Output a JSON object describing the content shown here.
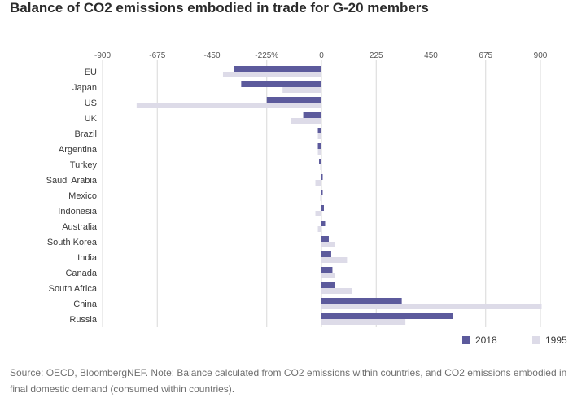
{
  "title": "Balance of CO2 emissions embodied in trade for G-20 members",
  "source_note": "Source: OECD, BloombergNEF. Note: Balance calculated from CO2 emissions within countries, and CO2 emissions embodied in final domestic demand (consumed within countries).",
  "colors": {
    "series_2018": "#5c5a9c",
    "series_1995": "#dddbe8",
    "grid": "#d8d8d8",
    "text": "#3a3a3a"
  },
  "chart_data": {
    "type": "bar",
    "orientation": "horizontal",
    "title": "Balance of CO2 emissions embodied in trade for G-20 members",
    "xlim": [
      -900,
      900
    ],
    "xticks": [
      -900,
      -675,
      -450,
      -225,
      0,
      225,
      450,
      675,
      900
    ],
    "xtick_labels": [
      "-900",
      "-675",
      "-450",
      "-225%",
      "0",
      "225",
      "450",
      "675",
      "900"
    ],
    "grid": true,
    "legend_position": "bottom-right",
    "categories": [
      "EU",
      "Japan",
      "US",
      "UK",
      "Brazil",
      "Argentina",
      "Turkey",
      "Saudi Arabia",
      "Mexico",
      "Indonesia",
      "Australia",
      "South Korea",
      "India",
      "Canada",
      "South Africa",
      "China",
      "Russia"
    ],
    "series": [
      {
        "name": "2018",
        "values": [
          -360,
          -330,
          -225,
          -75,
          -15,
          -15,
          -10,
          0,
          5,
          10,
          15,
          30,
          40,
          45,
          55,
          330,
          540
        ]
      },
      {
        "name": "1995",
        "values": [
          -405,
          -160,
          -760,
          -125,
          -15,
          -15,
          -5,
          -25,
          -5,
          -25,
          -15,
          55,
          105,
          55,
          125,
          905,
          345
        ]
      }
    ]
  }
}
